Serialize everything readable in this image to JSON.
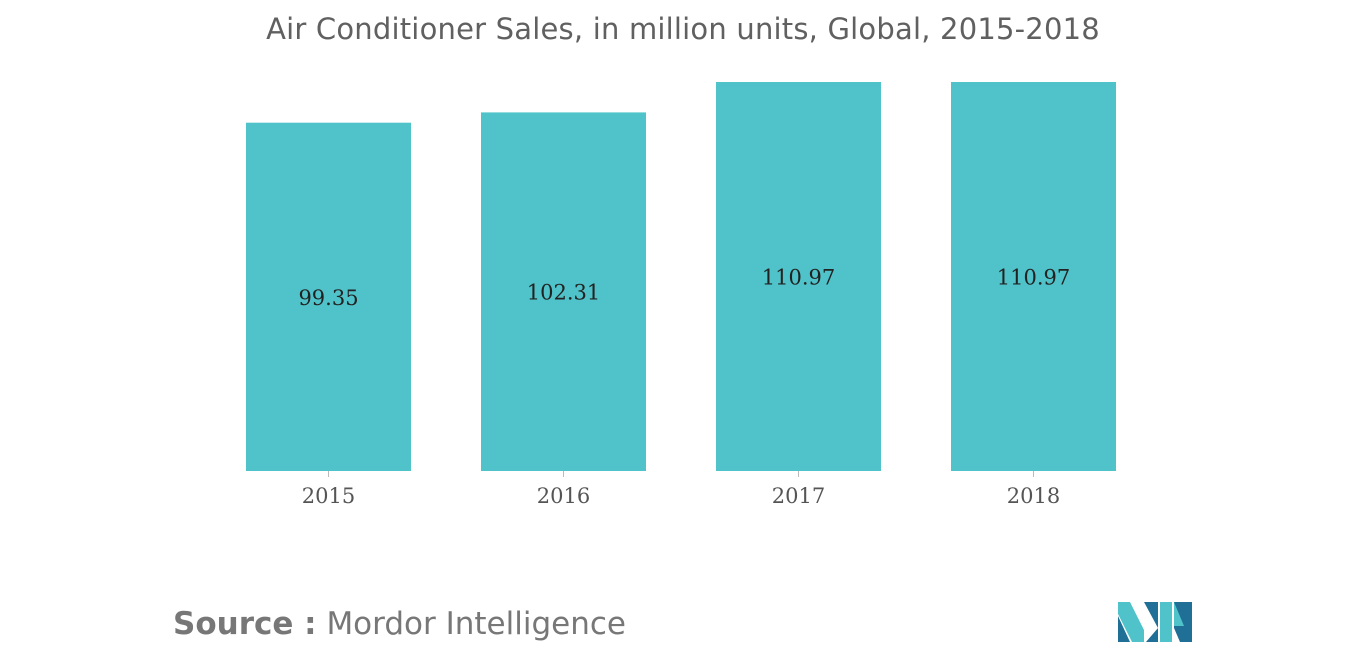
{
  "chart_data": {
    "type": "bar",
    "title": "Air Conditioner Sales, in million units, Global, 2015-2018",
    "categories": [
      "2015",
      "2016",
      "2017",
      "2018"
    ],
    "values": [
      99.35,
      102.31,
      110.97,
      110.97
    ],
    "value_labels": [
      "99.35",
      "102.31",
      "110.97",
      "110.97"
    ],
    "xlabel": "",
    "ylabel": "",
    "ylim": [
      0,
      110.97
    ],
    "grid": false,
    "legend": "none",
    "bar_color": "#4fc3c9"
  },
  "source": {
    "label": "Source :",
    "name": "Mordor Intelligence"
  },
  "logo": {
    "icon": "mordor-intelligence-logo-icon",
    "colors": [
      "#1f6f97",
      "#4fc3c9"
    ]
  }
}
